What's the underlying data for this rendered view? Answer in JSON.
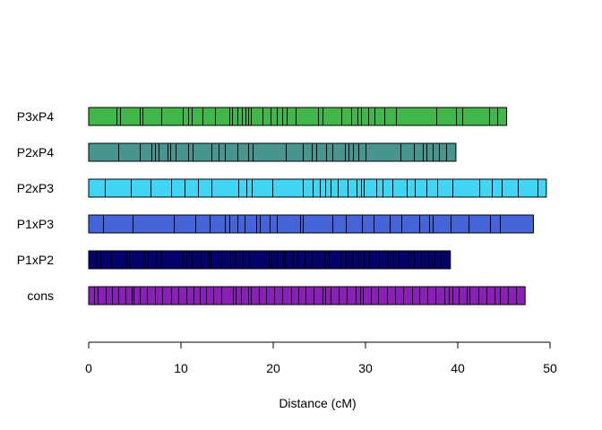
{
  "chart_data": {
    "type": "bar",
    "orientation": "horizontal",
    "xlabel": "Distance (cM)",
    "ylabel": "",
    "title": "",
    "xlim": [
      0,
      50
    ],
    "xticks": [
      0,
      10,
      20,
      30,
      40,
      50
    ],
    "grid": false,
    "legend": "none",
    "series": [
      {
        "label": "P3xP4",
        "length": 45.3,
        "color": "#41b649",
        "markers": [
          3.0,
          3.4,
          5.5,
          5.8,
          7.9,
          10.2,
          10.8,
          11.2,
          12.3,
          13.7,
          15.2,
          15.5,
          16.1,
          16.6,
          17.0,
          17.3,
          17.6,
          18.8,
          19.7,
          20.4,
          21.0,
          21.5,
          22.4,
          24.9,
          25.3,
          27.4,
          28.4,
          29.1,
          29.5,
          30.3,
          31.0,
          32.0,
          33.3,
          37.7,
          39.8,
          40.5,
          43.4,
          44.3
        ]
      },
      {
        "label": "P2xP4",
        "length": 39.8,
        "color": "#47958f",
        "markers": [
          3.2,
          5.5,
          6.8,
          7.2,
          7.6,
          8.5,
          8.8,
          9.4,
          10.8,
          11.3,
          13.3,
          14.1,
          14.8,
          16.1,
          17.3,
          17.8,
          21.4,
          23.2,
          24.2,
          24.7,
          25.7,
          26.4,
          27.8,
          28.2,
          28.6,
          29.2,
          30.0,
          33.8,
          35.2,
          36.2,
          36.6,
          37.3,
          38.0,
          38.7
        ]
      },
      {
        "label": "P2xP3",
        "length": 49.6,
        "color": "#41d5f4",
        "markers": [
          1.7,
          4.6,
          6.7,
          8.9,
          10.4,
          11.8,
          13.3,
          16.2,
          17.1,
          17.7,
          19.9,
          23.2,
          24.3,
          25.0,
          25.6,
          26.2,
          27.0,
          28.1,
          29.0,
          29.5,
          29.8,
          31.2,
          31.8,
          32.9,
          34.5,
          35.3,
          36.6,
          37.8,
          39.4,
          42.3,
          43.7,
          44.8,
          46.5,
          48.6
        ]
      },
      {
        "label": "P1xP3",
        "length": 48.2,
        "color": "#4564d9",
        "markers": [
          1.6,
          4.8,
          9.2,
          11.6,
          13.1,
          14.8,
          15.2,
          16.1,
          16.9,
          18.2,
          18.5,
          19.6,
          20.4,
          22.9,
          23.2,
          26.4,
          27.9,
          29.6,
          30.9,
          32.6,
          33.9,
          35.8,
          36.9,
          37.3,
          39.2,
          41.2,
          43.5,
          44.6
        ]
      },
      {
        "label": "P1xP2",
        "length": 39.2,
        "color": "#02026a",
        "markers": [
          0.8,
          1.3,
          2.4,
          4.1,
          4.4,
          5.9,
          6.4,
          7.3,
          7.9,
          10.2,
          10.6,
          11.2,
          12.1,
          13.0,
          13.2,
          14.4,
          15.3,
          15.8,
          16.7,
          17.4,
          19.5,
          19.8,
          20.4,
          21.1,
          21.3,
          22.1,
          22.6,
          23.4,
          24.2,
          25.5,
          26.0,
          27.3,
          27.9,
          28.5,
          29.2,
          29.8,
          30.4,
          31.5,
          32.3,
          33.0,
          33.6,
          34.7,
          35.2,
          36.0,
          36.8,
          37.5,
          38.2
        ]
      },
      {
        "label": "cons",
        "length": 47.3,
        "color": "#8b1fb8",
        "markers": [
          0.6,
          1.0,
          1.8,
          2.5,
          3.2,
          4.0,
          4.7,
          4.9,
          5.5,
          6.3,
          7.2,
          8.0,
          8.9,
          9.7,
          10.6,
          11.4,
          12.0,
          12.7,
          13.5,
          14.4,
          15.6,
          15.9,
          16.5,
          17.3,
          17.6,
          18.4,
          19.2,
          20.1,
          21.0,
          21.9,
          22.7,
          23.5,
          24.4,
          25.3,
          25.6,
          26.2,
          27.1,
          28.0,
          28.9,
          29.4,
          29.7,
          30.6,
          31.4,
          32.3,
          33.2,
          34.1,
          35.0,
          35.8,
          36.7,
          37.6,
          38.5,
          39.0,
          39.4,
          40.1,
          41.0,
          41.3,
          42.2,
          43.1,
          44.0,
          44.6,
          45.4,
          46.3
        ]
      }
    ]
  }
}
